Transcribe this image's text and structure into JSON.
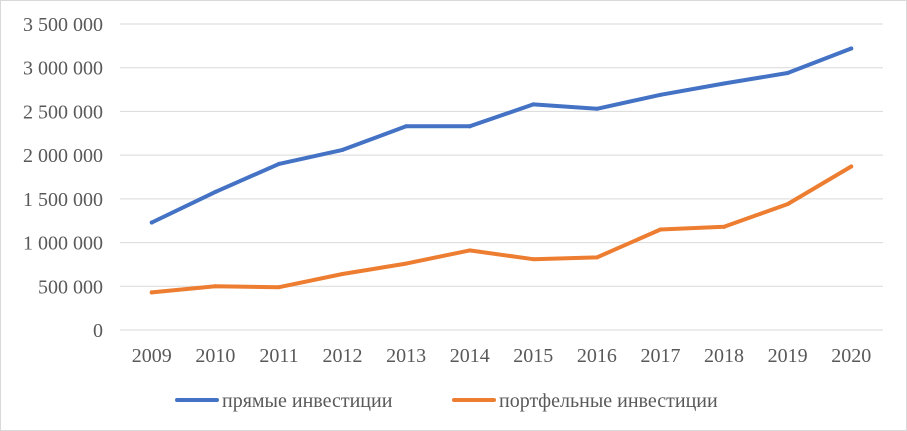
{
  "chart_data": {
    "type": "line",
    "title": "",
    "xlabel": "",
    "ylabel": "",
    "x": [
      "2009",
      "2010",
      "2011",
      "2012",
      "2013",
      "2014",
      "2015",
      "2016",
      "2017",
      "2018",
      "2019",
      "2020"
    ],
    "ylim": [
      0,
      3500000
    ],
    "yticks": [
      0,
      500000,
      1000000,
      1500000,
      2000000,
      2500000,
      3000000,
      3500000
    ],
    "ytick_labels": [
      "0",
      "500 000",
      "1 000 000",
      "1 500 000",
      "2 000 000",
      "2 500 000",
      "3 000 000",
      "3 500 000"
    ],
    "grid": true,
    "legend_position": "bottom",
    "series": [
      {
        "name": "прямые инвестиции",
        "color": "#4472C4",
        "values": [
          1230000,
          1580000,
          1900000,
          2060000,
          2330000,
          2330000,
          2580000,
          2530000,
          2690000,
          2820000,
          2940000,
          3220000
        ]
      },
      {
        "name": "портфельные инвестиции",
        "color": "#ED7D31",
        "values": [
          430000,
          500000,
          490000,
          640000,
          760000,
          910000,
          810000,
          830000,
          1150000,
          1180000,
          1440000,
          1870000
        ]
      }
    ]
  }
}
